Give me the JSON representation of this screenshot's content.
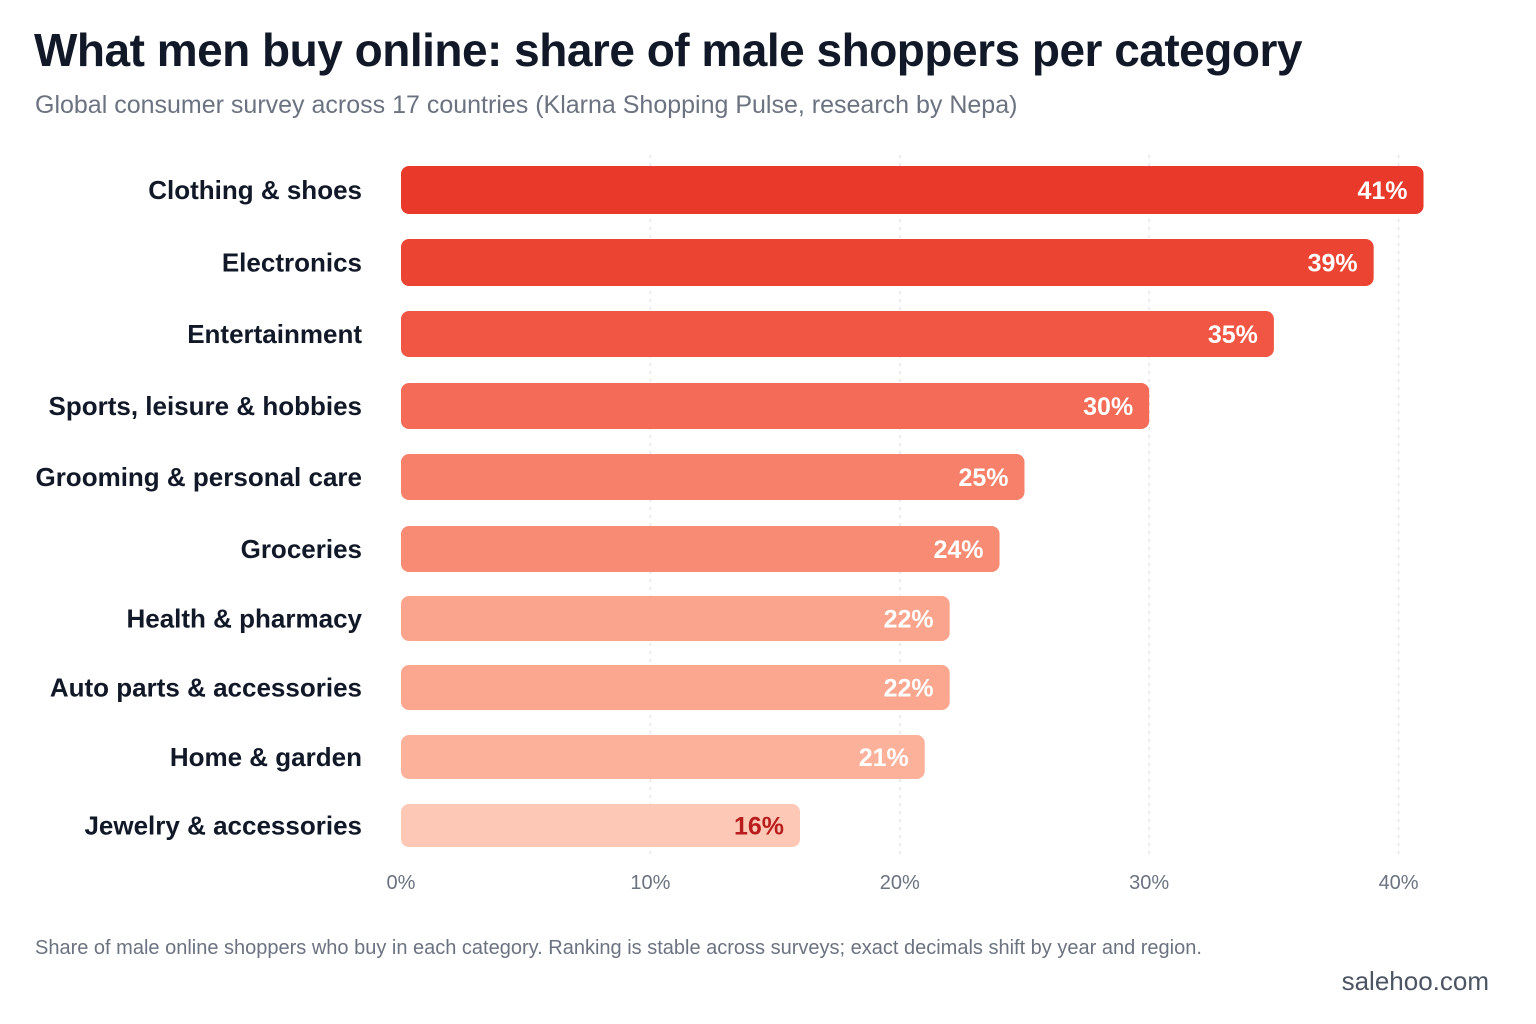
{
  "header": {
    "title": "What men buy online: share of male shoppers per category",
    "subtitle": "Global consumer survey across 17 countries (Klarna Shopping Pulse, research by Nepa)"
  },
  "footer": {
    "note": "Share of male online shoppers who buy in each category. Ranking is stable across surveys; exact decimals shift by year and region.",
    "source": "salehoo.com"
  },
  "chart_data": {
    "type": "bar",
    "orientation": "horizontal",
    "categories": [
      "Clothing & shoes",
      "Electronics",
      "Entertainment",
      "Sports, leisure & hobbies",
      "Grooming & personal care",
      "Groceries",
      "Health & pharmacy",
      "Auto parts & accessories",
      "Home & garden",
      "Jewelry & accessories"
    ],
    "values": [
      41,
      39,
      35,
      30,
      25,
      24,
      22,
      22,
      21,
      16
    ],
    "value_labels": [
      "41%",
      "39%",
      "35%",
      "30%",
      "25%",
      "24%",
      "22%",
      "22%",
      "21%",
      "16%"
    ],
    "bar_colors": [
      "#e8392a",
      "#ec4433",
      "#f05643",
      "#f46b57",
      "#f7806a",
      "#f88b74",
      "#fba48d",
      "#fba68f",
      "#fcb19a",
      "#fdc8b5"
    ],
    "label_colors": [
      "#ffffff",
      "#ffffff",
      "#ffffff",
      "#ffffff",
      "#ffffff",
      "#ffffff",
      "#ffffff",
      "#ffffff",
      "#ffffff",
      "#b91c1c"
    ],
    "xlim": [
      0,
      41.5
    ],
    "x_ticks": [
      0,
      10,
      20,
      30,
      40
    ],
    "x_tick_labels": [
      "0%",
      "10%",
      "20%",
      "30%",
      "40%"
    ],
    "grid": "vertical dashed",
    "legend": "none"
  }
}
